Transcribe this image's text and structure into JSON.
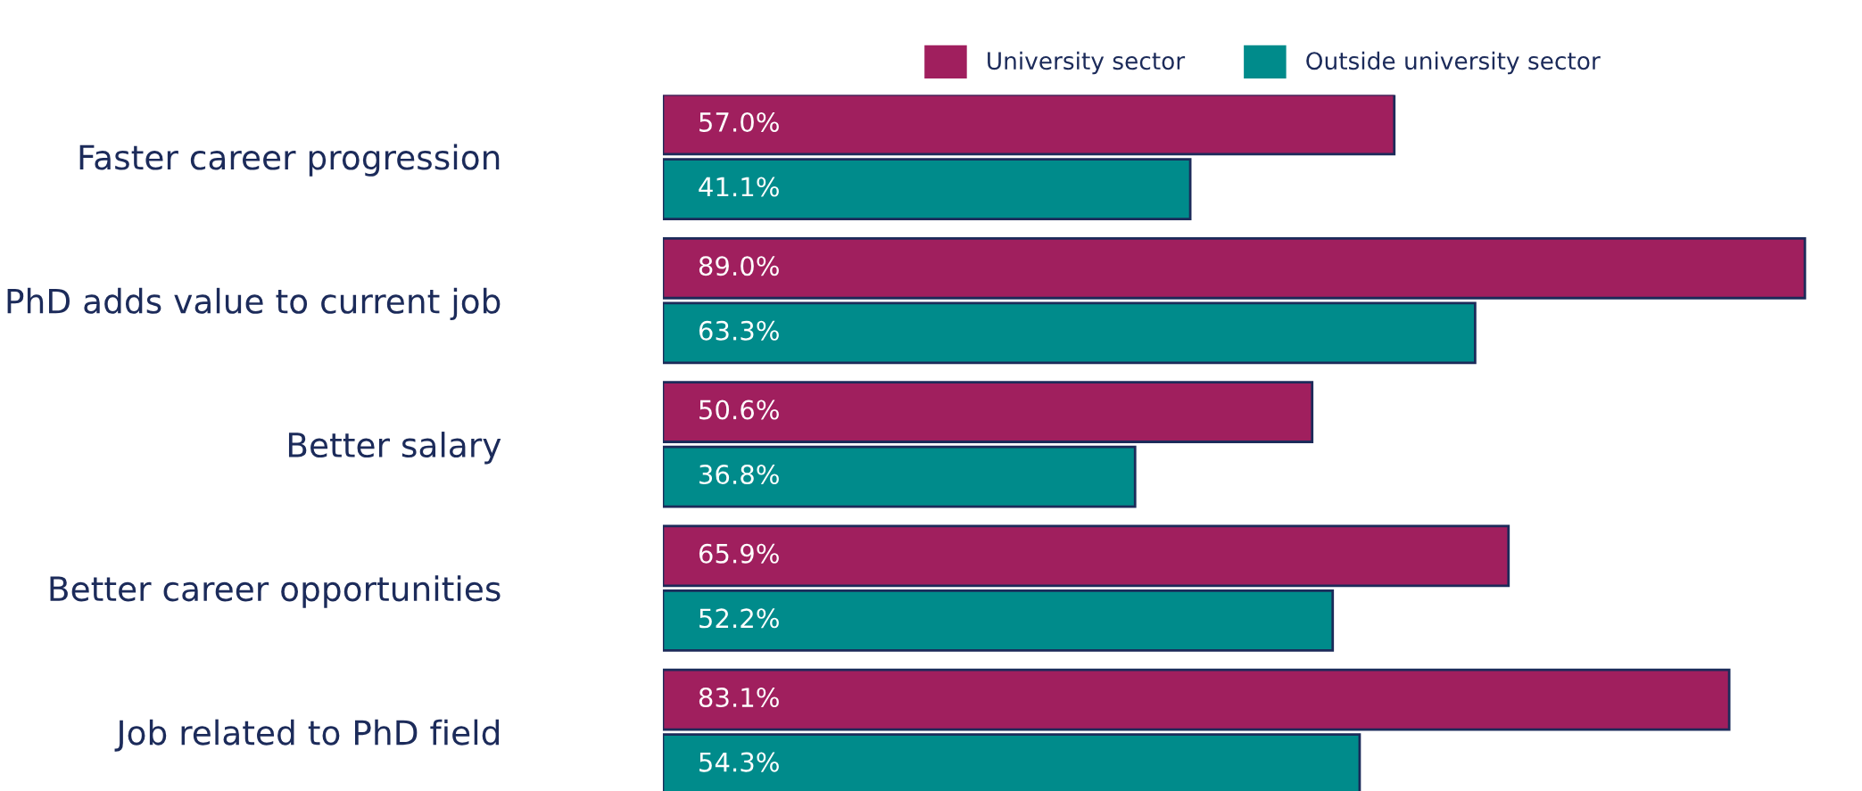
{
  "chart_data": {
    "type": "bar",
    "orientation": "horizontal",
    "categories": [
      "Faster career progression",
      "PhD adds value to current job",
      "Better salary",
      "Better career opportunities",
      "Job related to PhD field"
    ],
    "series": [
      {
        "name": "University sector",
        "color": "#a01f5e",
        "values": [
          57.0,
          89.0,
          50.6,
          65.9,
          83.1
        ],
        "value_labels": [
          "57.0%",
          "89.0%",
          "50.6%",
          "65.9%",
          "83.1%"
        ]
      },
      {
        "name": "Outside university sector",
        "color": "#008b8b",
        "values": [
          41.1,
          63.3,
          36.8,
          52.2,
          54.3
        ],
        "value_labels": [
          "41.1%",
          "63.3%",
          "36.8%",
          "52.2%",
          "54.3%"
        ]
      }
    ],
    "tick_labels": "y",
    "legend": "top",
    "grid": false
  }
}
